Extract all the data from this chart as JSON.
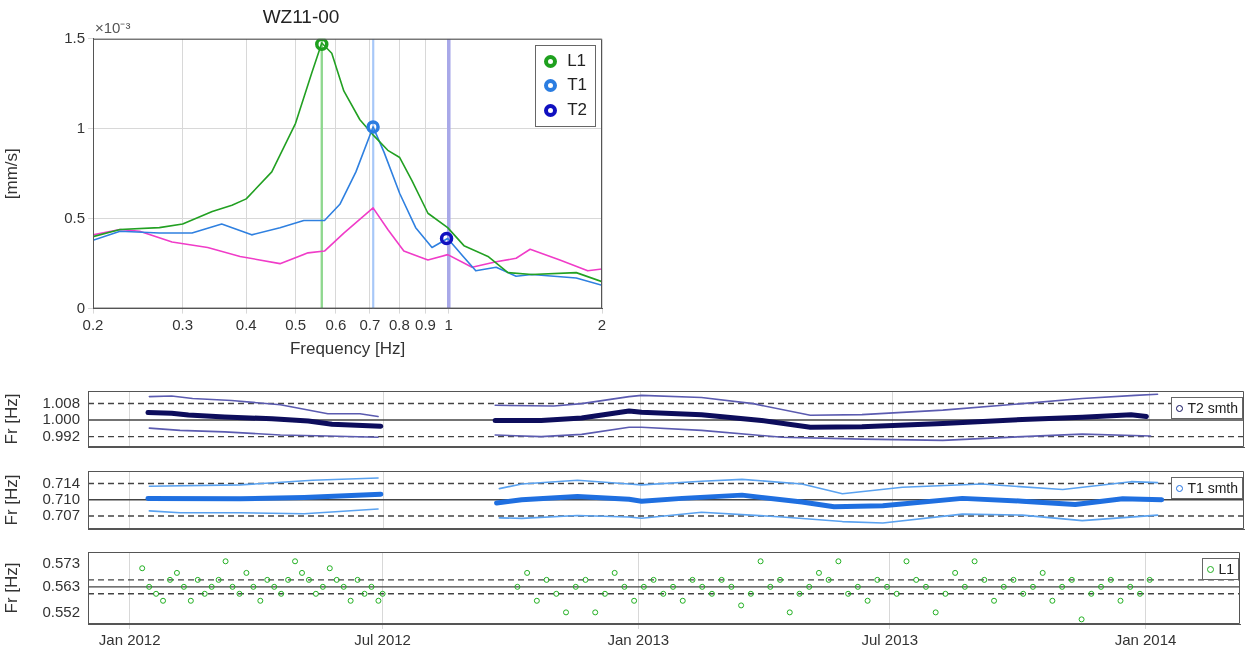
{
  "chart_data": [
    {
      "type": "line",
      "title": "WZ11-00",
      "xlabel": "Frequency [Hz]",
      "ylabel": "[mm/s]",
      "annotations": [
        "×10⁻³"
      ],
      "log": "x",
      "xlim": [
        0.2,
        2
      ],
      "xticks": [
        0.2,
        0.3,
        0.4,
        0.5,
        0.6,
        0.7,
        0.8,
        0.9,
        1,
        2
      ],
      "ylim": [
        0,
        1.5
      ],
      "yticks": [
        0,
        0.5,
        1,
        1.5
      ],
      "grid": true,
      "legend": "top right",
      "bands": [
        {
          "axis": "x",
          "from": 0.56,
          "to": 0.566,
          "color": "#8fd88f"
        },
        {
          "axis": "x",
          "from": 0.707,
          "to": 0.714,
          "color": "#a8c8f8"
        },
        {
          "axis": "x",
          "from": 0.992,
          "to": 1.008,
          "color": "#a8a8e8"
        }
      ],
      "series": [
        {
          "color": "#22a022",
          "x": [
            0.2,
            0.226,
            0.27,
            0.3,
            0.343,
            0.375,
            0.4,
            0.449,
            0.5,
            0.538,
            0.563,
            0.589,
            0.622,
            0.669,
            0.713,
            0.759,
            0.801,
            0.847,
            0.91,
            0.995,
            1.071,
            1.194,
            1.307,
            1.456,
            1.78,
            2
          ],
          "values": [
            0.4,
            0.44,
            0.45,
            0.47,
            0.54,
            0.575,
            0.61,
            0.76,
            1.03,
            1.31,
            1.477,
            1.42,
            1.21,
            1.05,
            0.96,
            0.88,
            0.84,
            0.71,
            0.53,
            0.45,
            0.35,
            0.29,
            0.2,
            0.19,
            0.2,
            0.15
          ]
        },
        {
          "color": "#2f80e0",
          "x": [
            0.2,
            0.226,
            0.27,
            0.313,
            0.358,
            0.41,
            0.466,
            0.519,
            0.57,
            0.611,
            0.657,
            0.71,
            0.746,
            0.801,
            0.861,
            0.927,
            0.995,
            1.052,
            1.13,
            1.239,
            1.356,
            1.456,
            1.78,
            2
          ],
          "values": [
            0.38,
            0.43,
            0.42,
            0.42,
            0.47,
            0.41,
            0.45,
            0.49,
            0.49,
            0.58,
            0.76,
            1.01,
            0.87,
            0.64,
            0.45,
            0.34,
            0.39,
            0.31,
            0.21,
            0.23,
            0.18,
            0.19,
            0.17,
            0.13
          ]
        },
        {
          "color": "#f03cc8",
          "x": [
            0.2,
            0.226,
            0.247,
            0.286,
            0.336,
            0.389,
            0.466,
            0.529,
            0.57,
            0.622,
            0.71,
            0.759,
            0.816,
            0.91,
            0.995,
            1.111,
            1.239,
            1.356,
            1.445,
            1.653,
            1.875,
            2
          ],
          "values": [
            0.41,
            0.44,
            0.43,
            0.37,
            0.34,
            0.29,
            0.25,
            0.31,
            0.32,
            0.42,
            0.56,
            0.44,
            0.32,
            0.27,
            0.3,
            0.23,
            0.26,
            0.28,
            0.33,
            0.27,
            0.21,
            0.22
          ]
        },
        {
          "type": "scatter",
          "marker": "circle",
          "name": "L1",
          "color": "#1ea01e",
          "x": [
            0.563
          ],
          "values": [
            1.47
          ]
        },
        {
          "type": "scatter",
          "marker": "circle",
          "name": "T1",
          "color": "#2b7de1",
          "x": [
            0.71
          ],
          "values": [
            1.01
          ]
        },
        {
          "type": "scatter",
          "marker": "circle",
          "name": "T2",
          "color": "#1010c0",
          "x": [
            0.99
          ],
          "values": [
            0.39
          ]
        }
      ]
    },
    {
      "type": "line",
      "ylabel": "Fr [Hz]",
      "xlim": [
        "2011-12-02",
        "2014-03-10"
      ],
      "xticks": [
        {
          "value": "2012-01-01",
          "label": null
        },
        {
          "value": "2012-07-01",
          "label": null
        },
        {
          "value": "2013-01-01",
          "label": null
        },
        {
          "value": "2013-07-01",
          "label": null
        },
        {
          "value": "2014-01-01",
          "label": null
        }
      ],
      "ylim": [
        0.987,
        1.014
      ],
      "yticks": [
        0.992,
        {
          "value": 1,
          "label": "1.000"
        },
        1.008
      ],
      "tick_labels": "y",
      "grid": "x",
      "legend": "top right",
      "ref_lines": [
        {
          "axis": "y",
          "value": 1.008,
          "line_style": "dashed"
        },
        {
          "axis": "y",
          "value": 1,
          "line_style": "solid"
        },
        {
          "axis": "y",
          "value": 0.992,
          "line_style": "dashed"
        }
      ],
      "series": [
        {
          "name": "T2 smth",
          "color": "#0d0d5c",
          "x": [
            "2012-01-14",
            "2012-01-31",
            "2012-02-12",
            "2012-03-09",
            "2012-04-12",
            "2012-05-08",
            "2012-05-25",
            "2012-06-29",
            "2012-08-15",
            "2012-09-19",
            "2012-10-22",
            "2012-11-20",
            "2012-12-24",
            "2013-01-02",
            "2013-02-14",
            "2013-03-29",
            "2013-05-03",
            "2013-06-09",
            "2013-08-06",
            "2013-10-02",
            "2013-11-14",
            "2013-12-19",
            "2013-12-30"
          ],
          "values": [
            1.0036,
            1.0033,
            1.0024,
            1.0015,
            1.0006,
            0.9995,
            0.998,
            0.997,
            null,
            0.9998,
            0.9998,
            1.001,
            1.0044,
            1.0038,
            1.0026,
            0.9998,
            0.9965,
            0.9968,
            0.9983,
            1.0003,
            1.0014,
            1.0026,
            1.0017
          ]
        },
        {
          "color": "#5b5bb0",
          "x": [
            "2012-01-15",
            "2012-01-31",
            "2012-02-15",
            "2012-03-14",
            "2012-04-18",
            "2012-05-22",
            "2012-06-14",
            "2012-06-27",
            "2012-08-15",
            "2012-09-19",
            "2012-10-31",
            "2012-11-20",
            "2012-12-24",
            "2013-01-02",
            "2013-02-14",
            "2013-03-23",
            "2013-05-03",
            "2013-06-09",
            "2013-08-06",
            "2013-10-02",
            "2013-11-14",
            "2013-12-22",
            "2014-01-07"
          ],
          "values": [
            1.0113,
            1.0116,
            1.0104,
            1.0094,
            1.0074,
            1.003,
            1.003,
            1.0017,
            null,
            1.0071,
            1.0068,
            1.0079,
            1.0113,
            1.0119,
            1.0109,
            1.0079,
            1.0023,
            1.0026,
            1.0048,
            1.0079,
            1.0104,
            1.0119,
            1.0124
          ]
        },
        {
          "color": "#5b5bb0",
          "x": [
            "2012-01-15",
            "2012-02-06",
            "2012-03-09",
            "2012-04-18",
            "2012-05-22",
            "2012-06-27",
            "2012-08-15",
            "2012-09-19",
            "2012-10-22",
            "2012-11-20",
            "2012-12-24",
            "2013-01-02",
            "2013-02-14",
            "2013-04-13",
            "2013-06-09",
            "2013-08-06",
            "2013-10-02",
            "2013-11-14",
            "2014-01-02"
          ],
          "values": [
            0.9961,
            0.995,
            0.9943,
            0.9928,
            0.9923,
            0.9917,
            null,
            0.9928,
            0.992,
            0.9931,
            0.9965,
            0.9965,
            0.995,
            0.9917,
            0.9908,
            0.9902,
            0.992,
            0.9932,
            0.9923
          ]
        }
      ]
    },
    {
      "type": "line",
      "ylabel": "Fr [Hz]",
      "xlim": [
        "2011-12-02",
        "2014-03-10"
      ],
      "xticks": [
        {
          "value": "2012-01-01",
          "label": null
        },
        {
          "value": "2012-07-01",
          "label": null
        },
        {
          "value": "2013-01-01",
          "label": null
        },
        {
          "value": "2013-07-01",
          "label": null
        },
        {
          "value": "2014-01-01",
          "label": null
        }
      ],
      "ylim": [
        0.704,
        0.7165
      ],
      "yticks": [
        {
          "value": 0.7068,
          "label": "0.707"
        },
        {
          "value": 0.7103,
          "label": "0.710"
        },
        {
          "value": 0.7138,
          "label": "0.714"
        }
      ],
      "tick_labels": "y",
      "grid": "x",
      "legend": "top right",
      "ref_lines": [
        {
          "axis": "y",
          "value": 0.7138,
          "line_style": "dashed"
        },
        {
          "axis": "y",
          "value": 0.7103,
          "line_style": "solid"
        },
        {
          "axis": "y",
          "value": 0.7068,
          "line_style": "dashed"
        }
      ],
      "series": [
        {
          "name": "T1 smth",
          "color": "#1f6fe0",
          "x": [
            "2012-01-14",
            "2012-03-20",
            "2012-05-05",
            "2012-06-29",
            "2012-08-15",
            "2012-09-20",
            "2012-10-08",
            "2012-11-17",
            "2012-12-24",
            "2013-01-02",
            "2013-01-31",
            "2013-03-15",
            "2013-04-27",
            "2013-05-20",
            "2013-06-24",
            "2013-08-20",
            "2013-10-02",
            "2013-11-09",
            "2013-12-13",
            "2014-01-10"
          ],
          "values": [
            0.7106,
            0.7105,
            0.7108,
            0.7115,
            null,
            0.7096,
            0.7103,
            0.711,
            0.7104,
            0.71,
            0.7106,
            0.7113,
            0.7098,
            0.7088,
            0.709,
            0.7106,
            0.71,
            0.7093,
            0.7105,
            0.7103
          ]
        },
        {
          "color": "#5aa2f0",
          "x": [
            "2012-01-15",
            "2012-03-20",
            "2012-05-11",
            "2012-06-27",
            "2012-08-15",
            "2012-09-22",
            "2012-10-08",
            "2012-11-17",
            "2012-12-24",
            "2013-01-02",
            "2013-02-14",
            "2013-03-15",
            "2013-04-27",
            "2013-05-26",
            "2013-07-08",
            "2013-09-03",
            "2013-10-31",
            "2013-12-19",
            "2014-01-07"
          ],
          "values": [
            0.7132,
            0.7135,
            0.7145,
            0.715,
            null,
            0.7127,
            0.7137,
            0.7145,
            0.7137,
            0.7135,
            0.7143,
            0.7147,
            0.7137,
            0.7116,
            0.713,
            0.7137,
            0.7125,
            0.7142,
            0.714
          ]
        },
        {
          "color": "#5aa2f0",
          "x": [
            "2012-01-15",
            "2012-02-06",
            "2012-03-20",
            "2012-05-05",
            "2012-06-27",
            "2012-08-15",
            "2012-09-22",
            "2012-10-08",
            "2012-11-17",
            "2012-12-24",
            "2013-01-02",
            "2013-02-14",
            "2013-04-13",
            "2013-05-26",
            "2013-06-24",
            "2013-08-20",
            "2013-10-02",
            "2013-11-14",
            "2014-01-07"
          ],
          "values": [
            0.7079,
            0.7075,
            0.7075,
            0.7073,
            0.7083,
            null,
            0.7064,
            0.7063,
            0.7069,
            0.7066,
            0.7063,
            0.7076,
            0.7066,
            0.7056,
            0.7053,
            0.7072,
            0.707,
            0.7058,
            0.707
          ]
        }
      ]
    },
    {
      "type": "scatter",
      "ylabel": "Fr [Hz]",
      "xlim": [
        "2011-12-02",
        "2014-03-10"
      ],
      "xticks": [
        {
          "value": "2012-01-01",
          "label": "Jan 2012"
        },
        {
          "value": "2012-07-01",
          "label": "Jul 2012"
        },
        {
          "value": "2013-01-01",
          "label": "Jan 2013"
        },
        {
          "value": "2013-07-01",
          "label": "Jul 2013"
        },
        {
          "value": "2014-01-01",
          "label": "Jan 2014"
        }
      ],
      "ylim": [
        0.547,
        0.578
      ],
      "yticks": [
        0.552,
        0.563,
        0.573
      ],
      "grid": "x",
      "legend": "top right",
      "marker": "circle",
      "ref_lines": [
        {
          "axis": "y",
          "value": 0.566,
          "line_style": "dashed"
        },
        {
          "axis": "y",
          "value": 0.563,
          "line_style": "solid"
        },
        {
          "axis": "y",
          "value": 0.56,
          "line_style": "dashed"
        }
      ],
      "series": [
        {
          "name": "L1",
          "color": "#22b022",
          "x": [
            "2012-01-10",
            "2012-01-15",
            "2012-01-20",
            "2012-01-25",
            "2012-01-30",
            "2012-02-04",
            "2012-02-09",
            "2012-02-14",
            "2012-02-19",
            "2012-02-24",
            "2012-02-29",
            "2012-03-05",
            "2012-03-10",
            "2012-03-15",
            "2012-03-20",
            "2012-03-25",
            "2012-03-30",
            "2012-04-04",
            "2012-04-09",
            "2012-04-14",
            "2012-04-19",
            "2012-04-24",
            "2012-04-29",
            "2012-05-04",
            "2012-05-09",
            "2012-05-14",
            "2012-05-19",
            "2012-05-24",
            "2012-05-29",
            "2012-06-03",
            "2012-06-08",
            "2012-06-13",
            "2012-06-18",
            "2012-06-23",
            "2012-06-28",
            "2012-07-01",
            "2012-10-06",
            "2012-10-13",
            "2012-10-20",
            "2012-10-27",
            "2012-11-03",
            "2012-11-10",
            "2012-11-17",
            "2012-11-24",
            "2012-12-01",
            "2012-12-08",
            "2012-12-15",
            "2012-12-22",
            "2012-12-29",
            "2013-01-05",
            "2013-01-12",
            "2013-01-19",
            "2013-01-26",
            "2013-02-02",
            "2013-02-09",
            "2013-02-16",
            "2013-02-23",
            "2013-03-02",
            "2013-03-09",
            "2013-03-16",
            "2013-03-23",
            "2013-03-30",
            "2013-04-06",
            "2013-04-13",
            "2013-04-20",
            "2013-04-27",
            "2013-05-04",
            "2013-05-11",
            "2013-05-18",
            "2013-05-25",
            "2013-06-01",
            "2013-06-08",
            "2013-06-15",
            "2013-06-22",
            "2013-06-29",
            "2013-07-06",
            "2013-07-13",
            "2013-07-20",
            "2013-07-27",
            "2013-08-03",
            "2013-08-10",
            "2013-08-17",
            "2013-08-24",
            "2013-08-31",
            "2013-09-07",
            "2013-09-14",
            "2013-09-21",
            "2013-09-28",
            "2013-10-05",
            "2013-10-12",
            "2013-10-19",
            "2013-10-26",
            "2013-11-02",
            "2013-11-09",
            "2013-11-16",
            "2013-11-23",
            "2013-11-30",
            "2013-12-07",
            "2013-12-14",
            "2013-12-21",
            "2013-12-28",
            "2014-01-04"
          ],
          "values": [
            0.571,
            0.563,
            0.56,
            0.557,
            0.566,
            0.569,
            0.563,
            0.557,
            0.566,
            0.56,
            0.563,
            0.566,
            0.574,
            0.563,
            0.56,
            0.569,
            0.563,
            0.557,
            0.566,
            0.563,
            0.56,
            0.566,
            0.574,
            0.569,
            0.566,
            0.56,
            0.563,
            0.571,
            0.566,
            0.563,
            0.557,
            0.566,
            0.56,
            0.563,
            0.557,
            0.56,
            0.563,
            0.569,
            0.557,
            0.566,
            0.56,
            0.552,
            0.563,
            0.566,
            0.552,
            0.56,
            0.569,
            0.563,
            0.557,
            0.563,
            0.566,
            0.56,
            0.563,
            0.557,
            0.566,
            0.563,
            0.56,
            0.566,
            0.563,
            0.555,
            0.56,
            0.574,
            0.563,
            0.566,
            0.552,
            0.56,
            0.563,
            0.569,
            0.566,
            0.574,
            0.56,
            0.563,
            0.557,
            0.566,
            0.563,
            0.56,
            0.574,
            0.566,
            0.563,
            0.552,
            0.56,
            0.569,
            0.563,
            0.574,
            0.566,
            0.557,
            0.563,
            0.566,
            0.56,
            0.563,
            0.569,
            0.557,
            0.563,
            0.566,
            0.549,
            0.56,
            0.563,
            0.566,
            0.557,
            0.563,
            0.56,
            0.566
          ]
        }
      ]
    }
  ]
}
